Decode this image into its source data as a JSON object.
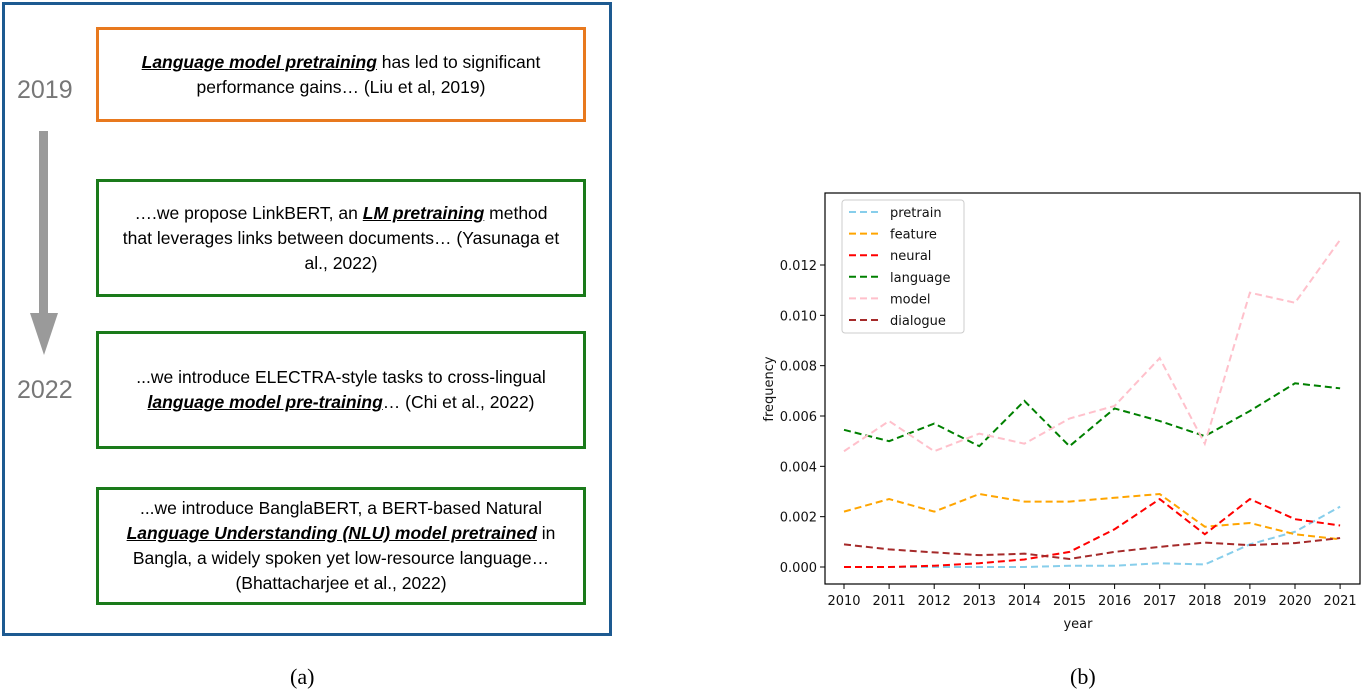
{
  "panel_a": {
    "years": [
      "2019",
      "2022"
    ],
    "quotes": [
      {
        "color": "#e8791e",
        "parts": [
          {
            "text": "Language model pretraining",
            "em": true
          },
          {
            "text": " has led to significant performance gains… (Liu et al, 2019)",
            "em": false
          }
        ]
      },
      {
        "color": "#1a7a1a",
        "parts": [
          {
            "text": "….we propose LinkBERT, an ",
            "em": false
          },
          {
            "text": "LM pretraining",
            "em": true
          },
          {
            "text": " method that leverages links between documents… (Yasunaga et al., 2022)",
            "em": false
          }
        ]
      },
      {
        "color": "#1a7a1a",
        "parts": [
          {
            "text": "...we introduce ELECTRA-style tasks to cross-lingual ",
            "em": false
          },
          {
            "text": "language model pre-training",
            "em": true
          },
          {
            "text": "… (Chi et al., 2022)",
            "em": false
          }
        ]
      },
      {
        "color": "#1a7a1a",
        "parts": [
          {
            "text": "...we introduce BanglaBERT, a BERT-based Natural ",
            "em": false
          },
          {
            "text": "Language Understanding (NLU) model pretrained",
            "em": true
          },
          {
            "text": " in Bangla, a widely spoken yet low-resource language… (Bhattacharjee et al., 2022)",
            "em": false
          }
        ]
      }
    ],
    "caption": "(a)"
  },
  "panel_b": {
    "caption": "(b)"
  },
  "chart_data": {
    "type": "line",
    "title": "",
    "xlabel": "year",
    "ylabel": "frequency",
    "x": [
      2010,
      2011,
      2012,
      2013,
      2014,
      2015,
      2016,
      2017,
      2018,
      2019,
      2020,
      2021
    ],
    "ylim": [
      -0.0006,
      0.0136
    ],
    "yticks": [
      "0.000",
      "0.002",
      "0.004",
      "0.006",
      "0.008",
      "0.010",
      "0.012"
    ],
    "ytick_values": [
      0,
      0.002,
      0.004,
      0.006,
      0.008,
      0.01,
      0.012
    ],
    "legend_position": "top-left",
    "line_style": "dashed",
    "series": [
      {
        "name": "pretrain",
        "color": "#87ceeb",
        "values": [
          0,
          0,
          0,
          0,
          0,
          5e-05,
          5e-05,
          0.00015,
          0.0001,
          0.0009,
          0.0014,
          0.0024
        ]
      },
      {
        "name": "feature",
        "color": "#ffa500",
        "values": [
          0.0022,
          0.0027,
          0.0022,
          0.0029,
          0.0026,
          0.0026,
          0.00275,
          0.0029,
          0.0016,
          0.00175,
          0.0013,
          0.0011
        ]
      },
      {
        "name": "neural",
        "color": "#ff0000",
        "values": [
          0,
          0,
          5e-05,
          0.00015,
          0.0003,
          0.0006,
          0.0015,
          0.0027,
          0.0013,
          0.0027,
          0.0019,
          0.00165
        ]
      },
      {
        "name": "language",
        "color": "#008000",
        "values": [
          0.00545,
          0.005,
          0.0057,
          0.0048,
          0.0066,
          0.0048,
          0.0063,
          0.0058,
          0.0052,
          0.0062,
          0.0073,
          0.0071
        ]
      },
      {
        "name": "model",
        "color": "#ffc0cb",
        "values": [
          0.0046,
          0.0058,
          0.0046,
          0.0053,
          0.0049,
          0.0059,
          0.0064,
          0.0083,
          0.0049,
          0.0109,
          0.0105,
          0.013
        ]
      },
      {
        "name": "dialogue",
        "color": "#a52a2a",
        "values": [
          0.0009,
          0.0007,
          0.00058,
          0.00047,
          0.00053,
          0.00032,
          0.0006,
          0.0008,
          0.00097,
          0.00087,
          0.00095,
          0.00115
        ]
      }
    ]
  }
}
